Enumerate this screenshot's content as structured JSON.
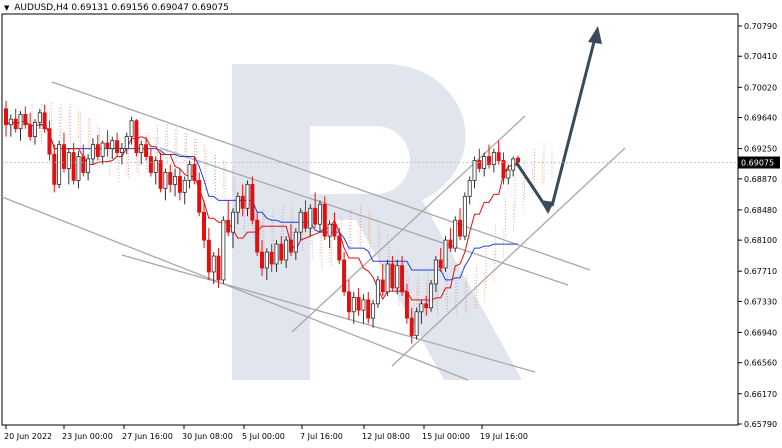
{
  "chart_data": {
    "type": "candlestick",
    "title": "AUDUSD,H4",
    "ohlc": {
      "open": "0.69131",
      "high": "0.69156",
      "low": "0.69047",
      "close": "0.69075"
    },
    "current_price": 0.69075,
    "current_price_label": "0.69075",
    "y_ticks": [
      0.7079,
      0.7041,
      0.7002,
      0.6964,
      0.6925,
      0.6887,
      0.6848,
      0.681,
      0.6771,
      0.6733,
      0.6694,
      0.6656,
      0.6617,
      0.6579
    ],
    "y_tick_labels": [
      "0.70790",
      "0.70410",
      "0.70020",
      "0.69640",
      "0.69250",
      "0.68870",
      "0.68480",
      "0.68100",
      "0.67710",
      "0.67330",
      "0.66940",
      "0.66560",
      "0.66170",
      "0.65790"
    ],
    "ylim": [
      0.6568,
      0.7099
    ],
    "x_ticks": [
      "20 Jun 2022",
      "23 Jun 00:00",
      "27 Jun 16:00",
      "30 Jun 08:00",
      "5 Jul 00:00",
      "7 Jul 16:00",
      "12 Jul 08:00",
      "15 Jul 00:00",
      "19 Jul 16:00"
    ],
    "colors": {
      "bull": "#2e2e2e",
      "bear": "#e01010",
      "kijun": "#1f3fe0",
      "tenkan": "#e01010",
      "cloud_a": "#b48ec8",
      "cloud_b": "#f0a060",
      "trendline": "#a8a8a8",
      "arrow": "#3a4a5a",
      "watermark": "#c8d0e0"
    },
    "candles": [
      [
        0.6975,
        0.6985,
        0.694,
        0.6955
      ],
      [
        0.6955,
        0.6968,
        0.694,
        0.6962
      ],
      [
        0.6962,
        0.6975,
        0.6945,
        0.695
      ],
      [
        0.695,
        0.6972,
        0.6935,
        0.6968
      ],
      [
        0.6968,
        0.6978,
        0.695,
        0.6955
      ],
      [
        0.6955,
        0.697,
        0.6935,
        0.694
      ],
      [
        0.694,
        0.6962,
        0.693,
        0.6958
      ],
      [
        0.6958,
        0.6975,
        0.695,
        0.697
      ],
      [
        0.697,
        0.698,
        0.6945,
        0.695
      ],
      [
        0.695,
        0.696,
        0.691,
        0.6918
      ],
      [
        0.6918,
        0.693,
        0.687,
        0.688
      ],
      [
        0.688,
        0.6935,
        0.6875,
        0.693
      ],
      [
        0.693,
        0.6945,
        0.6895,
        0.69
      ],
      [
        0.69,
        0.6925,
        0.688,
        0.692
      ],
      [
        0.692,
        0.6932,
        0.688,
        0.6885
      ],
      [
        0.6885,
        0.6922,
        0.6875,
        0.6915
      ],
      [
        0.6915,
        0.693,
        0.689,
        0.6895
      ],
      [
        0.6895,
        0.6918,
        0.6885,
        0.6912
      ],
      [
        0.6912,
        0.6938,
        0.6905,
        0.693
      ],
      [
        0.693,
        0.6942,
        0.691,
        0.6915
      ],
      [
        0.6915,
        0.6935,
        0.6905,
        0.6932
      ],
      [
        0.6932,
        0.6948,
        0.6915,
        0.6925
      ],
      [
        0.6925,
        0.694,
        0.6912,
        0.6935
      ],
      [
        0.6935,
        0.6945,
        0.6915,
        0.692
      ],
      [
        0.692,
        0.6932,
        0.6905,
        0.6925
      ],
      [
        0.6925,
        0.6945,
        0.6918,
        0.694
      ],
      [
        0.694,
        0.6965,
        0.693,
        0.696
      ],
      [
        0.696,
        0.6962,
        0.6915,
        0.692
      ],
      [
        0.692,
        0.6935,
        0.6905,
        0.693
      ],
      [
        0.693,
        0.694,
        0.691,
        0.6915
      ],
      [
        0.6915,
        0.6925,
        0.689,
        0.6895
      ],
      [
        0.6895,
        0.6915,
        0.688,
        0.691
      ],
      [
        0.691,
        0.692,
        0.687,
        0.6875
      ],
      [
        0.6875,
        0.69,
        0.686,
        0.6895
      ],
      [
        0.6895,
        0.6905,
        0.687,
        0.688
      ],
      [
        0.688,
        0.69,
        0.6865,
        0.689
      ],
      [
        0.689,
        0.69,
        0.686,
        0.687
      ],
      [
        0.687,
        0.689,
        0.6855,
        0.6885
      ],
      [
        0.6885,
        0.691,
        0.6875,
        0.6905
      ],
      [
        0.6905,
        0.6915,
        0.688,
        0.6885
      ],
      [
        0.6885,
        0.6895,
        0.684,
        0.6845
      ],
      [
        0.6845,
        0.686,
        0.68,
        0.681
      ],
      [
        0.681,
        0.6825,
        0.676,
        0.677
      ],
      [
        0.677,
        0.6795,
        0.6755,
        0.679
      ],
      [
        0.679,
        0.68,
        0.675,
        0.676
      ],
      [
        0.676,
        0.684,
        0.6755,
        0.6835
      ],
      [
        0.6835,
        0.686,
        0.6815,
        0.682
      ],
      [
        0.682,
        0.685,
        0.68,
        0.6845
      ],
      [
        0.6845,
        0.687,
        0.683,
        0.6865
      ],
      [
        0.6865,
        0.688,
        0.684,
        0.685
      ],
      [
        0.685,
        0.6885,
        0.684,
        0.688
      ],
      [
        0.688,
        0.689,
        0.683,
        0.6835
      ],
      [
        0.6835,
        0.6845,
        0.679,
        0.6795
      ],
      [
        0.6795,
        0.681,
        0.6765,
        0.6775
      ],
      [
        0.6775,
        0.68,
        0.676,
        0.6795
      ],
      [
        0.6795,
        0.6805,
        0.677,
        0.678
      ],
      [
        0.678,
        0.681,
        0.677,
        0.6805
      ],
      [
        0.6805,
        0.6815,
        0.678,
        0.6785
      ],
      [
        0.6785,
        0.6815,
        0.6775,
        0.681
      ],
      [
        0.681,
        0.683,
        0.679,
        0.6795
      ],
      [
        0.6795,
        0.6825,
        0.6785,
        0.682
      ],
      [
        0.682,
        0.685,
        0.681,
        0.6845
      ],
      [
        0.6845,
        0.686,
        0.682,
        0.6825
      ],
      [
        0.6825,
        0.6855,
        0.6815,
        0.685
      ],
      [
        0.685,
        0.687,
        0.6825,
        0.683
      ],
      [
        0.683,
        0.686,
        0.682,
        0.6855
      ],
      [
        0.6855,
        0.6865,
        0.681,
        0.6815
      ],
      [
        0.6815,
        0.6835,
        0.68,
        0.683
      ],
      [
        0.683,
        0.6845,
        0.681,
        0.6815
      ],
      [
        0.6815,
        0.6825,
        0.678,
        0.6785
      ],
      [
        0.6785,
        0.6795,
        0.674,
        0.6745
      ],
      [
        0.6745,
        0.676,
        0.671,
        0.672
      ],
      [
        0.672,
        0.6745,
        0.6705,
        0.6738
      ],
      [
        0.6738,
        0.675,
        0.6715,
        0.6722
      ],
      [
        0.6722,
        0.6742,
        0.6705,
        0.6735
      ],
      [
        0.6735,
        0.6745,
        0.6705,
        0.6712
      ],
      [
        0.6712,
        0.6735,
        0.67,
        0.673
      ],
      [
        0.673,
        0.6765,
        0.6725,
        0.676
      ],
      [
        0.676,
        0.678,
        0.674,
        0.6745
      ],
      [
        0.6745,
        0.6785,
        0.674,
        0.678
      ],
      [
        0.678,
        0.679,
        0.6745,
        0.675
      ],
      [
        0.675,
        0.6785,
        0.6742,
        0.6778
      ],
      [
        0.6778,
        0.679,
        0.674,
        0.6745
      ],
      [
        0.6745,
        0.6755,
        0.6705,
        0.6712
      ],
      [
        0.6712,
        0.6725,
        0.668,
        0.669
      ],
      [
        0.669,
        0.6725,
        0.6685,
        0.672
      ],
      [
        0.672,
        0.6735,
        0.6705,
        0.673
      ],
      [
        0.673,
        0.674,
        0.6715,
        0.6725
      ],
      [
        0.6725,
        0.676,
        0.672,
        0.6755
      ],
      [
        0.6755,
        0.679,
        0.6745,
        0.6785
      ],
      [
        0.6785,
        0.68,
        0.677,
        0.6775
      ],
      [
        0.6775,
        0.6815,
        0.677,
        0.681
      ],
      [
        0.681,
        0.6825,
        0.6795,
        0.68
      ],
      [
        0.68,
        0.684,
        0.6795,
        0.6835
      ],
      [
        0.6835,
        0.685,
        0.681,
        0.6815
      ],
      [
        0.6815,
        0.687,
        0.681,
        0.6865
      ],
      [
        0.6865,
        0.689,
        0.6855,
        0.6885
      ],
      [
        0.6885,
        0.6915,
        0.6875,
        0.691
      ],
      [
        0.691,
        0.6925,
        0.6895,
        0.69
      ],
      [
        0.69,
        0.692,
        0.689,
        0.6915
      ],
      [
        0.6915,
        0.693,
        0.69,
        0.6905
      ],
      [
        0.6905,
        0.6925,
        0.6895,
        0.692
      ],
      [
        0.692,
        0.6935,
        0.6905,
        0.691
      ],
      [
        0.691,
        0.692,
        0.688,
        0.6888
      ],
      [
        0.6888,
        0.6905,
        0.688,
        0.6898
      ],
      [
        0.6898,
        0.6915,
        0.689,
        0.6912
      ],
      [
        0.6913,
        0.6916,
        0.6905,
        0.6908
      ]
    ]
  }
}
